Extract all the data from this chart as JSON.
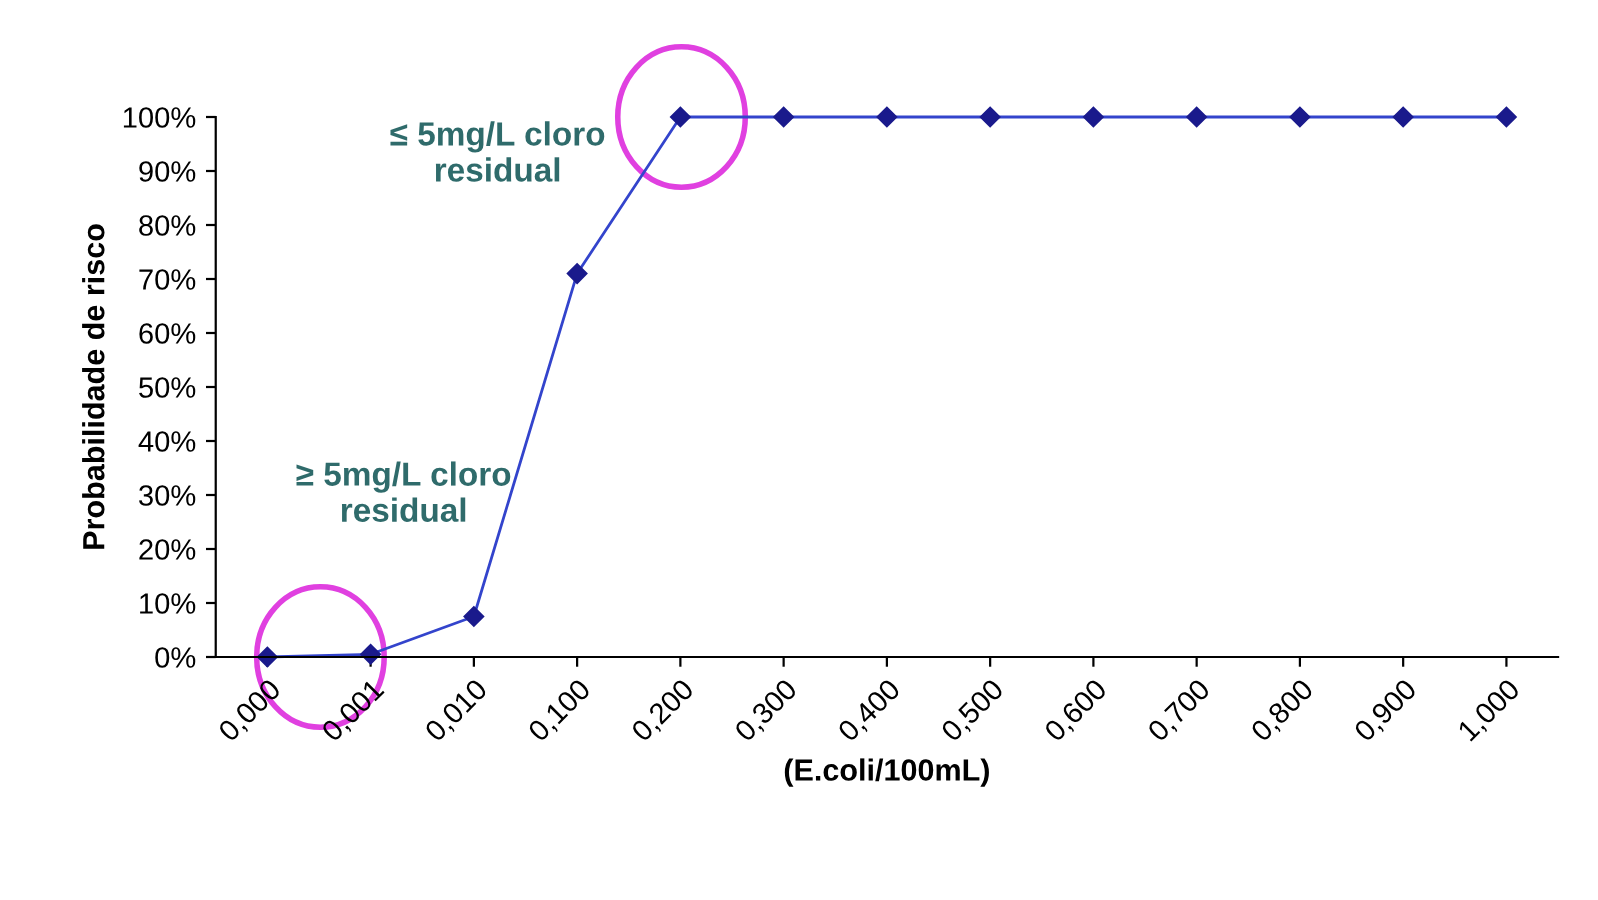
{
  "chart_data": {
    "type": "line",
    "xlabel": "(E.coli/100mL)",
    "ylabel": "Probabilidade de risco",
    "categories": [
      "0,000",
      "0,001",
      "0,010",
      "0,100",
      "0,200",
      "0,300",
      "0,400",
      "0,500",
      "0,600",
      "0,700",
      "0,800",
      "0,900",
      "1,000"
    ],
    "series": [
      {
        "color": "#1a1a8c",
        "values": [
          0,
          0.5,
          7.5,
          71,
          100,
          100,
          100,
          100,
          100,
          100,
          100,
          100,
          100
        ]
      }
    ],
    "ylim": [
      0,
      100
    ],
    "yticks": [
      {
        "value": 0,
        "label": "0%"
      },
      {
        "value": 10,
        "label": "10%"
      },
      {
        "value": 20,
        "label": "20%"
      },
      {
        "value": 30,
        "label": "30%"
      },
      {
        "value": 40,
        "label": "40%"
      },
      {
        "value": 50,
        "label": "50%"
      },
      {
        "value": 60,
        "label": "60%"
      },
      {
        "value": 70,
        "label": "70%"
      },
      {
        "value": 80,
        "label": "80%"
      },
      {
        "value": 90,
        "label": "90%"
      },
      {
        "value": 100,
        "label": "100%"
      }
    ],
    "annotations": [
      "≥ 5mg/L cloro\nresidual",
      "≤ 5mg/L cloro\nresidual"
    ],
    "marker": "diamond",
    "line_style": "solid",
    "grid": false,
    "legend": false
  }
}
